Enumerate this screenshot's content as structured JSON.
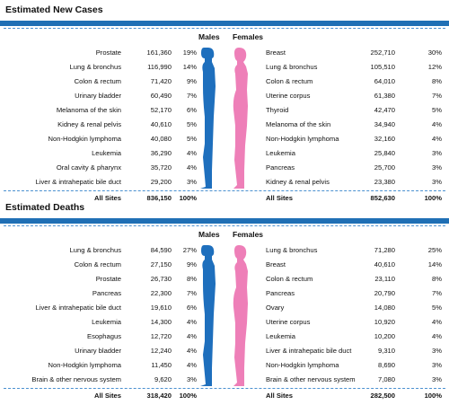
{
  "chart_data": [
    {
      "type": "table",
      "title": "Estimated New Cases",
      "males_label": "Males",
      "females_label": "Females",
      "males": [
        {
          "site": "Prostate",
          "count": "161,360",
          "pct": "19%"
        },
        {
          "site": "Lung & bronchus",
          "count": "116,990",
          "pct": "14%"
        },
        {
          "site": "Colon & rectum",
          "count": "71,420",
          "pct": "9%"
        },
        {
          "site": "Urinary bladder",
          "count": "60,490",
          "pct": "7%"
        },
        {
          "site": "Melanoma of the skin",
          "count": "52,170",
          "pct": "6%"
        },
        {
          "site": "Kidney & renal pelvis",
          "count": "40,610",
          "pct": "5%"
        },
        {
          "site": "Non-Hodgkin lymphoma",
          "count": "40,080",
          "pct": "5%"
        },
        {
          "site": "Leukemia",
          "count": "36,290",
          "pct": "4%"
        },
        {
          "site": "Oral cavity & pharynx",
          "count": "35,720",
          "pct": "4%"
        },
        {
          "site": "Liver & intrahepatic bile duct",
          "count": "29,200",
          "pct": "3%"
        }
      ],
      "females": [
        {
          "site": "Breast",
          "count": "252,710",
          "pct": "30%"
        },
        {
          "site": "Lung & bronchus",
          "count": "105,510",
          "pct": "12%"
        },
        {
          "site": "Colon & rectum",
          "count": "64,010",
          "pct": "8%"
        },
        {
          "site": "Uterine corpus",
          "count": "61,380",
          "pct": "7%"
        },
        {
          "site": "Thyroid",
          "count": "42,470",
          "pct": "5%"
        },
        {
          "site": "Melanoma of the skin",
          "count": "34,940",
          "pct": "4%"
        },
        {
          "site": "Non-Hodgkin lymphoma",
          "count": "32,160",
          "pct": "4%"
        },
        {
          "site": "Leukemia",
          "count": "25,840",
          "pct": "3%"
        },
        {
          "site": "Pancreas",
          "count": "25,700",
          "pct": "3%"
        },
        {
          "site": "Kidney & renal pelvis",
          "count": "23,380",
          "pct": "3%"
        }
      ],
      "males_total": {
        "site": "All Sites",
        "count": "836,150",
        "pct": "100%"
      },
      "females_total": {
        "site": "All Sites",
        "count": "852,630",
        "pct": "100%"
      }
    },
    {
      "type": "table",
      "title": "Estimated Deaths",
      "males_label": "Males",
      "females_label": "Females",
      "males": [
        {
          "site": "Lung & bronchus",
          "count": "84,590",
          "pct": "27%"
        },
        {
          "site": "Colon & rectum",
          "count": "27,150",
          "pct": "9%"
        },
        {
          "site": "Prostate",
          "count": "26,730",
          "pct": "8%"
        },
        {
          "site": "Pancreas",
          "count": "22,300",
          "pct": "7%"
        },
        {
          "site": "Liver & intrahepatic bile duct",
          "count": "19,610",
          "pct": "6%"
        },
        {
          "site": "Leukemia",
          "count": "14,300",
          "pct": "4%"
        },
        {
          "site": "Esophagus",
          "count": "12,720",
          "pct": "4%"
        },
        {
          "site": "Urinary bladder",
          "count": "12,240",
          "pct": "4%"
        },
        {
          "site": "Non-Hodgkin lymphoma",
          "count": "11,450",
          "pct": "4%"
        },
        {
          "site": "Brain & other nervous system",
          "count": "9,620",
          "pct": "3%"
        }
      ],
      "females": [
        {
          "site": "Lung & bronchus",
          "count": "71,280",
          "pct": "25%"
        },
        {
          "site": "Breast",
          "count": "40,610",
          "pct": "14%"
        },
        {
          "site": "Colon & rectum",
          "count": "23,110",
          "pct": "8%"
        },
        {
          "site": "Pancreas",
          "count": "20,790",
          "pct": "7%"
        },
        {
          "site": "Ovary",
          "count": "14,080",
          "pct": "5%"
        },
        {
          "site": "Uterine corpus",
          "count": "10,920",
          "pct": "4%"
        },
        {
          "site": "Leukemia",
          "count": "10,200",
          "pct": "4%"
        },
        {
          "site": "Liver & intrahepatic bile duct",
          "count": "9,310",
          "pct": "3%"
        },
        {
          "site": "Non-Hodgkin lymphoma",
          "count": "8,690",
          "pct": "3%"
        },
        {
          "site": "Brain & other nervous system",
          "count": "7,080",
          "pct": "3%"
        }
      ],
      "males_total": {
        "site": "All Sites",
        "count": "318,420",
        "pct": "100%"
      },
      "females_total": {
        "site": "All Sites",
        "count": "282,500",
        "pct": "100%"
      }
    }
  ],
  "colors": {
    "header_bar": "#1f6fb5",
    "male": "#1e6fbd",
    "female": "#ee7fb8",
    "dash": "#4a90d0"
  }
}
